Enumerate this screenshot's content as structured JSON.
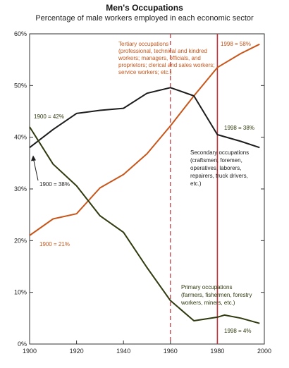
{
  "chart_data": {
    "type": "line",
    "title": "Men's Occupations",
    "subtitle": "Percentage of male workers employed in each economic sector",
    "xlabel": "",
    "ylabel": "",
    "xlim": [
      1900,
      2000
    ],
    "ylim": [
      0,
      60
    ],
    "x_ticks": [
      "1900",
      "1920",
      "1940",
      "1960",
      "1980",
      "2000"
    ],
    "y_ticks": [
      "0%",
      "10%",
      "20%",
      "30%",
      "40%",
      "50%",
      "60%"
    ],
    "series": [
      {
        "name": "Tertiary",
        "color": "#c8561a",
        "x": [
          1900,
          1910,
          1920,
          1930,
          1940,
          1950,
          1960,
          1970,
          1980,
          1990,
          1998
        ],
        "values": [
          21,
          24.2,
          25.2,
          30.2,
          32.8,
          36.8,
          42.2,
          48,
          53.5,
          56.2,
          58
        ]
      },
      {
        "name": "Secondary",
        "color": "#1c1c1c",
        "x": [
          1900,
          1910,
          1920,
          1930,
          1940,
          1950,
          1960,
          1970,
          1980,
          1990,
          1998
        ],
        "values": [
          38,
          41.5,
          44.6,
          45.2,
          45.6,
          48.5,
          49.6,
          48,
          40.5,
          39.2,
          38
        ]
      },
      {
        "name": "Primary",
        "color": "#2e3a0e",
        "x": [
          1900,
          1910,
          1920,
          1930,
          1940,
          1950,
          1960,
          1970,
          1980,
          1983,
          1990,
          1998
        ],
        "values": [
          42,
          34.8,
          30.6,
          24.8,
          21.6,
          14.8,
          8.4,
          4.5,
          5.2,
          5.6,
          5,
          4
        ]
      }
    ],
    "reference_lines": [
      {
        "x": 1960,
        "style": "dashed",
        "color": "#c0303a"
      },
      {
        "x": 1980,
        "style": "solid",
        "color": "#c0303a"
      }
    ],
    "annotations": {
      "tertiary": {
        "lines": [
          "Tertiary occupations",
          "(professional, technical and kindred",
          "workers; managers, officials, and",
          "proprietors; clerical and sales workers;",
          "service workers; etc.)"
        ],
        "color": "#c8561a"
      },
      "tertiary_end": {
        "text": "1998 = 58%",
        "color": "#c8561a"
      },
      "tertiary_start": {
        "text": "1900 = 21%",
        "color": "#c8561a"
      },
      "primary_start": {
        "text": "1900 = 42%",
        "color": "#2e3a0e"
      },
      "secondary_start": {
        "text": "1900 = 38%",
        "color": "#1c1c1c"
      },
      "secondary_end": {
        "text": "1998 = 38%",
        "color": "#2e3a0e"
      },
      "secondary": {
        "lines": [
          "Secondary occupations",
          "(craftsmen, foremen,",
          "operatives, laborers,",
          "repairers, truck drivers,",
          "etc.)"
        ],
        "color": "#1c1c1c"
      },
      "primary": {
        "lines": [
          "Primary occupations",
          "(farmers, fishermen, forestry",
          "workers, miners, etc.)"
        ],
        "color": "#2e3a0e"
      },
      "primary_end": {
        "text": "1998 = 4%",
        "color": "#2e3a0e"
      }
    }
  }
}
